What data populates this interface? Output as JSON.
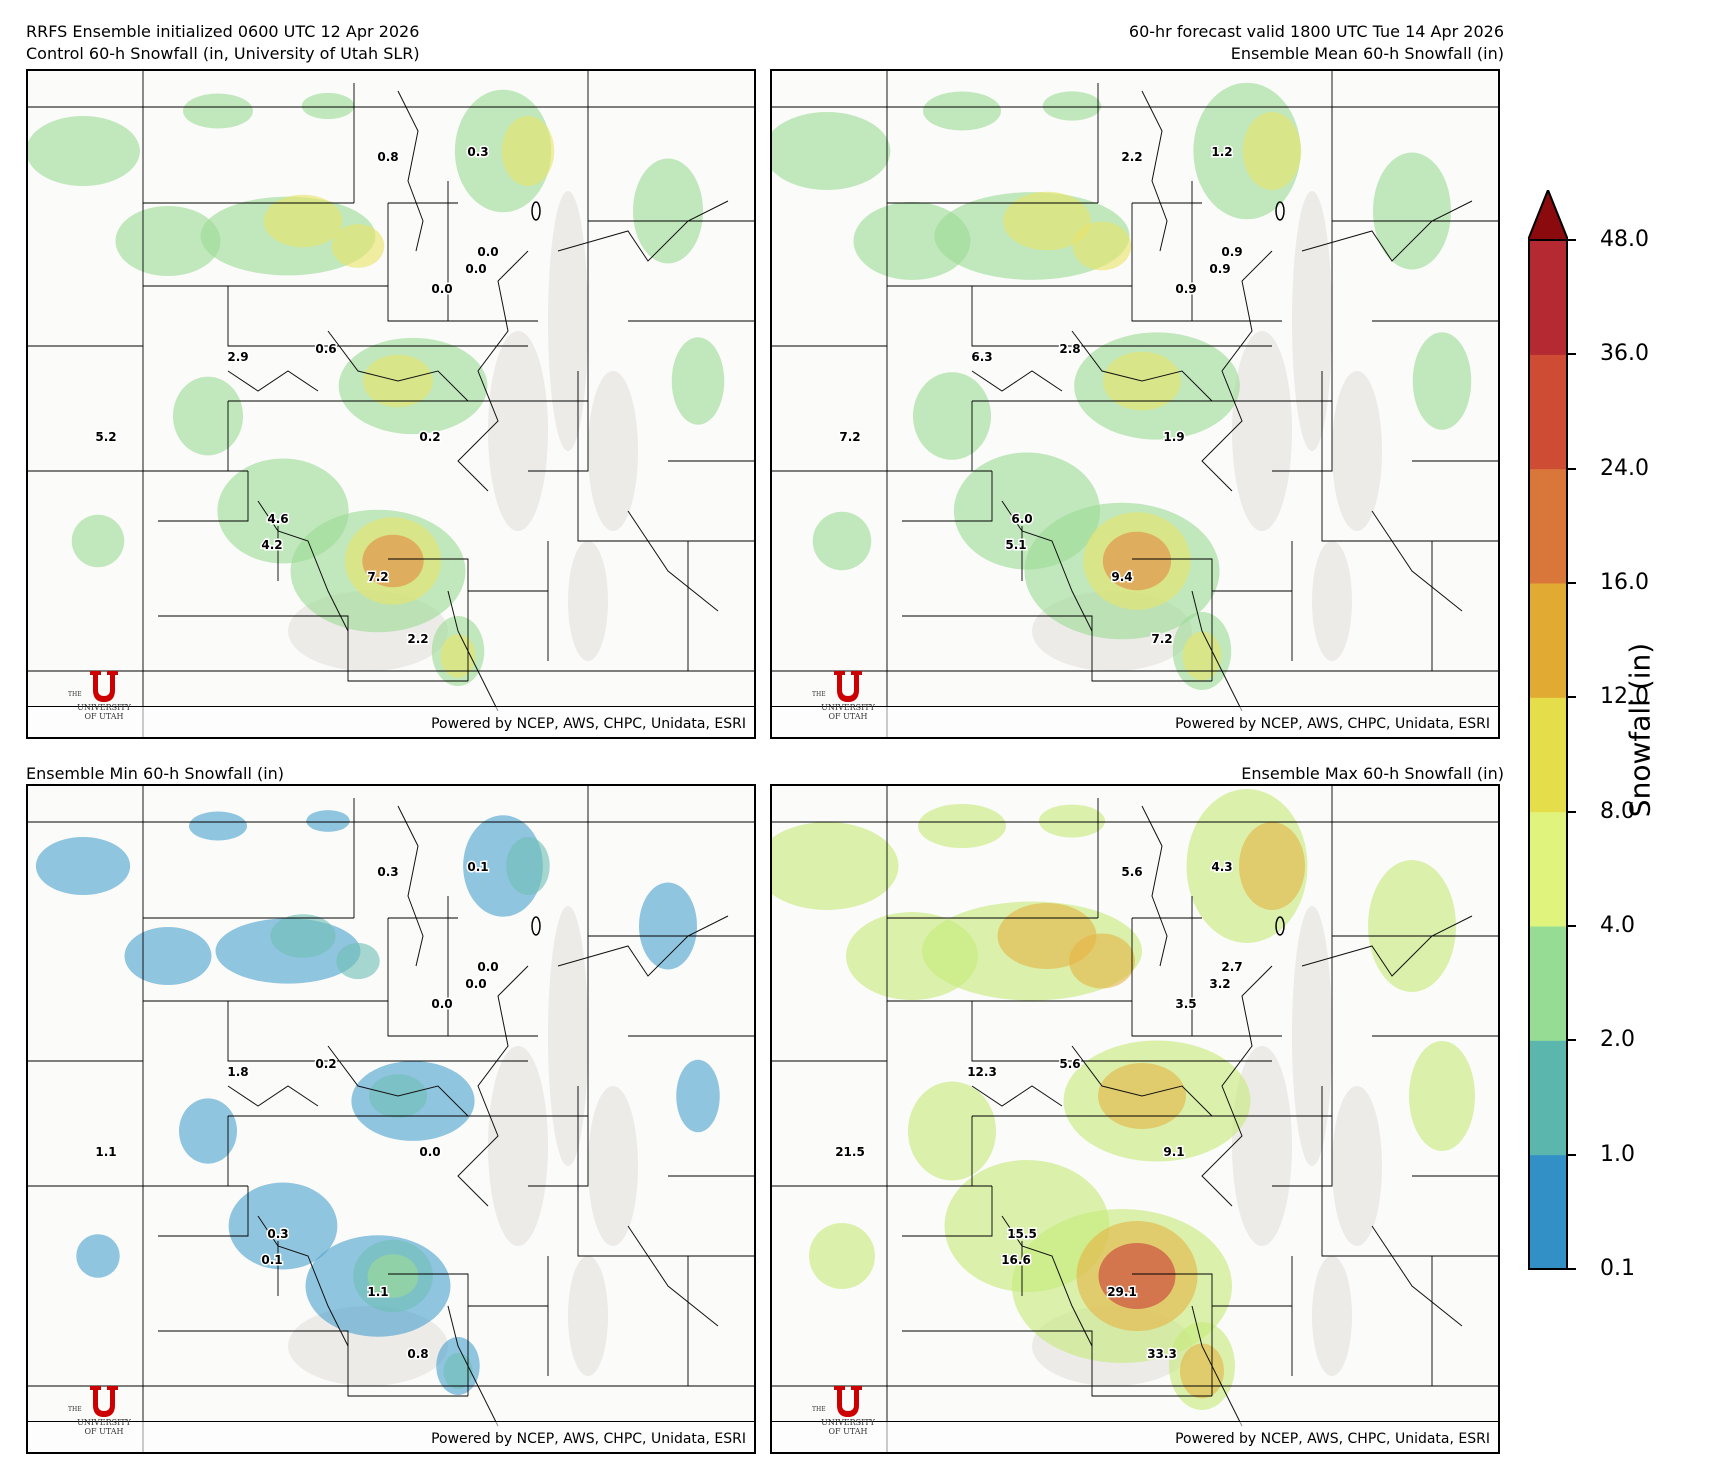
{
  "titles": {
    "top_left_line1": "RRFS Ensemble initialized 0600 UTC 12 Apr 2026",
    "top_left_line2": "Control 60-h Snowfall (in, University of Utah SLR)",
    "top_right_line1": "60-hr forecast valid 1800 UTC Tue 14 Apr 2026",
    "top_right_line2": "Ensemble Mean 60-h Snowfall (in)",
    "bottom_left": "Ensemble Min 60-h Snowfall (in)",
    "bottom_right": "Ensemble Max 60-h Snowfall (in)"
  },
  "credit": "Powered by NCEP, AWS, CHPC, Unidata, ESRI",
  "logo": {
    "the": "THE",
    "line1": "UNIVERSITY",
    "line2": "OF UTAH"
  },
  "panels": {
    "control": {
      "intensity": 0.55,
      "values": [
        "0.8",
        "0.3",
        "0.0",
        "0.0",
        "0.0",
        "2.9",
        "0.6",
        "5.2",
        "0.2",
        "4.6",
        "4.2",
        "7.2",
        "2.2"
      ]
    },
    "mean": {
      "intensity": 0.75,
      "values": [
        "2.2",
        "1.2",
        "0.9",
        "0.9",
        "0.9",
        "6.3",
        "2.8",
        "7.2",
        "1.9",
        "6.0",
        "5.1",
        "9.4",
        "7.2"
      ]
    },
    "min": {
      "intensity": 0.25,
      "values": [
        "0.3",
        "0.1",
        "0.0",
        "0.0",
        "0.0",
        "1.8",
        "0.2",
        "1.1",
        "0.0",
        "0.3",
        "0.1",
        "1.1",
        "0.8"
      ]
    },
    "max": {
      "intensity": 1.0,
      "values": [
        "5.6",
        "4.3",
        "2.7",
        "3.2",
        "3.5",
        "12.3",
        "5.6",
        "21.5",
        "9.1",
        "15.5",
        "16.6",
        "29.1",
        "33.3"
      ]
    }
  },
  "colorbar": {
    "label": "Snowfall (in)",
    "ticks": [
      "48.0",
      "36.0",
      "24.0",
      "16.0",
      "12.0",
      "8.0",
      "4.0",
      "2.0",
      "1.0",
      "0.1"
    ],
    "colors": [
      "#3390c6",
      "#5bb6ae",
      "#96dc94",
      "#e0f37c",
      "#e6dd4a",
      "#e1aa33",
      "#d9773a",
      "#cd4c33",
      "#b52932"
    ],
    "extend_color": "#8b0a0e"
  }
}
